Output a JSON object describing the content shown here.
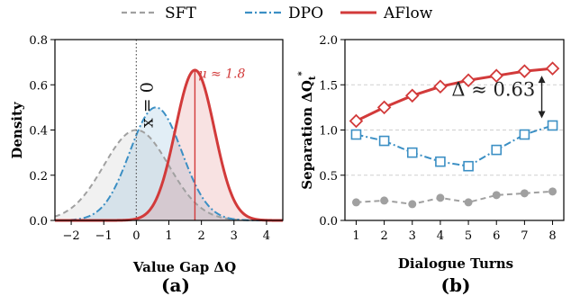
{
  "legend": [
    {
      "label": "SFT",
      "color": "#a0a0a0",
      "dash": "dashed"
    },
    {
      "label": "DPO",
      "color": "#3b8fc4",
      "dash": "dashdot"
    },
    {
      "label": "AFlow",
      "color": "#d23a3a",
      "dash": "solid"
    }
  ],
  "panels": [
    "(a)",
    "(b)"
  ],
  "chart_data": [
    {
      "type": "area",
      "panel_label": "(a)",
      "xlabel": "Value Gap ΔQ",
      "ylabel": "Density",
      "xlim": [
        -2.5,
        4.5
      ],
      "ylim": [
        0,
        0.8
      ],
      "xticks": [
        -2,
        -1,
        0,
        1,
        2,
        3,
        4
      ],
      "yticks": [
        0.0,
        0.2,
        0.4,
        0.6,
        0.8
      ],
      "grid": false,
      "series": [
        {
          "name": "SFT",
          "distribution": "normal",
          "mean": 0.0,
          "std": 1.0,
          "peak_density": 0.4,
          "color": "#a0a0a0",
          "style": "dashed"
        },
        {
          "name": "DPO",
          "distribution": "normal",
          "mean": 0.6,
          "std": 0.8,
          "peak_density": 0.5,
          "color": "#3b8fc4",
          "style": "dashdot"
        },
        {
          "name": "AFlow",
          "distribution": "normal",
          "mean": 1.8,
          "std": 0.6,
          "peak_density": 0.665,
          "color": "#d23a3a",
          "style": "solid"
        }
      ],
      "annotations": [
        {
          "text": "x = 0",
          "type": "vertical-line",
          "x": 0
        },
        {
          "text": "μ ≈ 1.8",
          "type": "vertical-line",
          "x": 1.8
        }
      ]
    },
    {
      "type": "line",
      "panel_label": "(b)",
      "xlabel": "Dialogue Turns",
      "ylabel": "Separation ΔQ",
      "ylabel_sub": "t",
      "ylabel_sup": "*",
      "x": [
        1,
        2,
        3,
        4,
        5,
        6,
        7,
        8
      ],
      "xlim": [
        0.6,
        8.4
      ],
      "ylim": [
        0,
        2.0
      ],
      "yticks": [
        0.0,
        0.5,
        1.0,
        1.5,
        2.0
      ],
      "grid": true,
      "series": [
        {
          "name": "SFT",
          "values": [
            0.2,
            0.22,
            0.18,
            0.25,
            0.2,
            0.28,
            0.3,
            0.32
          ],
          "color": "#a0a0a0",
          "style": "dashed",
          "marker": "circle"
        },
        {
          "name": "DPO",
          "values": [
            0.95,
            0.88,
            0.75,
            0.65,
            0.6,
            0.78,
            0.95,
            1.05
          ],
          "color": "#3b8fc4",
          "style": "dashdot",
          "marker": "square"
        },
        {
          "name": "AFlow",
          "values": [
            1.1,
            1.25,
            1.38,
            1.48,
            1.55,
            1.6,
            1.65,
            1.68
          ],
          "color": "#d23a3a",
          "style": "solid",
          "marker": "diamond"
        }
      ],
      "annotations": [
        {
          "text": "Δ ≈ 0.63",
          "type": "double-arrow",
          "x": 8,
          "from": 1.05,
          "to": 1.68
        }
      ]
    }
  ]
}
